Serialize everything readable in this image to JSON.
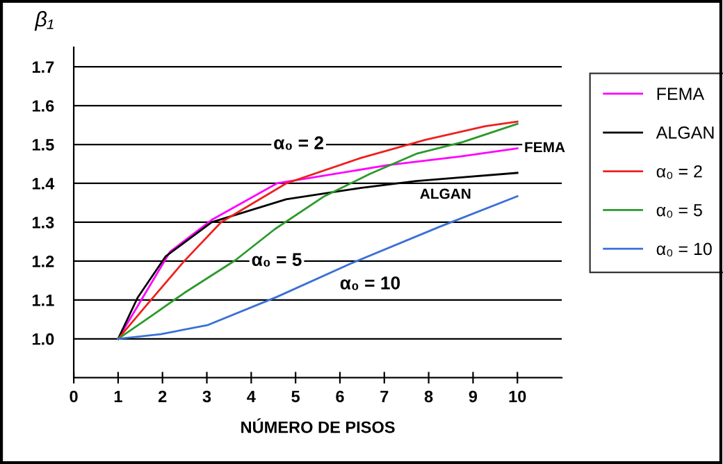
{
  "chart_data": {
    "type": "line",
    "ylabel": "β₁",
    "xlabel": "NÚMERO DE PISOS",
    "xlim": [
      0,
      11
    ],
    "xticks": [
      0,
      1,
      2,
      3,
      4,
      5,
      6,
      7,
      8,
      9,
      10
    ],
    "ylim": [
      0.9,
      1.75
    ],
    "yticks": [
      {
        "value": 0.9,
        "label": null
      },
      {
        "value": 1,
        "label": "1.0"
      },
      1.1,
      1.2,
      1.3,
      1.4,
      1.5,
      1.6,
      1.7
    ],
    "grid": "y",
    "legend": "right",
    "marker": "none",
    "line_style": "solid",
    "series": [
      {
        "name": "FEMA",
        "color": "#ff00ff",
        "x": [
          1,
          2.17,
          3.11,
          4.58,
          7.09,
          8.76,
          10
        ],
        "values": [
          1.0,
          1.224,
          1.306,
          1.4,
          1.447,
          1.47,
          1.49
        ]
      },
      {
        "name": "ALGAN",
        "color": "#000000",
        "x": [
          1,
          1.44,
          2.07,
          3.11,
          4.79,
          6.46,
          7.72,
          10
        ],
        "values": [
          1.0,
          1.106,
          1.212,
          1.3,
          1.359,
          1.388,
          1.406,
          1.427
        ]
      },
      {
        "name": "α₀ = 2",
        "color": "#ee2020",
        "x": [
          1,
          1.65,
          2.49,
          3.32,
          4.79,
          6.46,
          7.92,
          9.28,
          10
        ],
        "values": [
          1.0,
          1.088,
          1.2,
          1.3,
          1.4,
          1.465,
          1.512,
          1.547,
          1.559
        ]
      },
      {
        "name": "α₀ = 5",
        "color": "#2a9a2a",
        "x": [
          1,
          1.75,
          2.49,
          3.64,
          4.53,
          5.62,
          6.67,
          7.72,
          8.76,
          10
        ],
        "values": [
          1.0,
          1.059,
          1.118,
          1.202,
          1.282,
          1.365,
          1.424,
          1.476,
          1.506,
          1.553
        ]
      },
      {
        "name": "α₀ = 10",
        "color": "#3a6fd8",
        "x": [
          1,
          1.96,
          3.01,
          4.58,
          6.25,
          8.24,
          10
        ],
        "values": [
          1.0,
          1.012,
          1.035,
          1.108,
          1.194,
          1.288,
          1.367
        ]
      }
    ],
    "annotations": [
      "α₀ = 2",
      "α₀ = 5",
      "α₀ = 10",
      "FEMA",
      "ALGAN"
    ]
  }
}
